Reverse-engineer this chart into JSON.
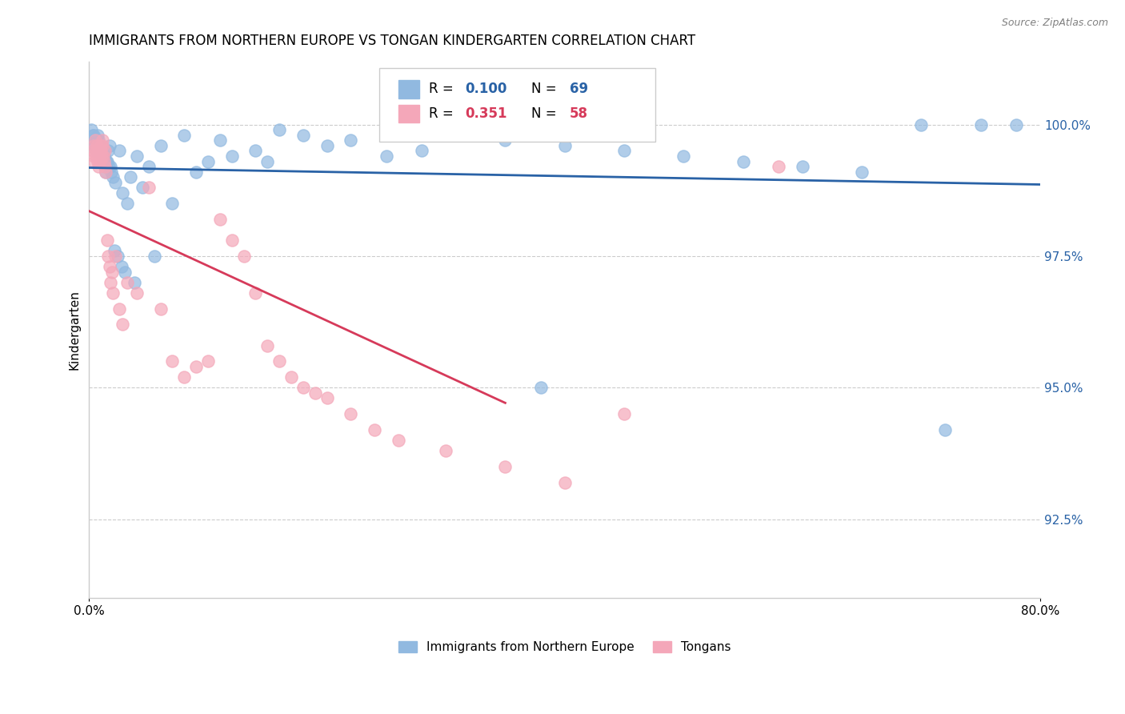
{
  "title": "IMMIGRANTS FROM NORTHERN EUROPE VS TONGAN KINDERGARTEN CORRELATION CHART",
  "source": "Source: ZipAtlas.com",
  "ylabel": "Kindergarten",
  "ylabel_ticks": [
    92.5,
    95.0,
    97.5,
    100.0
  ],
  "xlim": [
    0.0,
    80.0
  ],
  "ylim": [
    91.0,
    101.2
  ],
  "blue_R": 0.1,
  "blue_N": 69,
  "pink_R": 0.351,
  "pink_N": 58,
  "blue_color": "#91b9e0",
  "pink_color": "#f4a7b9",
  "blue_line_color": "#2962a6",
  "pink_line_color": "#d63a5a",
  "legend_label_blue": "Immigrants from Northern Europe",
  "legend_label_pink": "Tongans",
  "blue_x": [
    0.3,
    0.4,
    0.5,
    0.6,
    0.7,
    0.8,
    0.9,
    1.0,
    1.1,
    1.2,
    1.3,
    1.4,
    1.5,
    1.6,
    1.7,
    1.8,
    2.0,
    2.2,
    2.5,
    2.8,
    3.2,
    3.5,
    4.0,
    4.5,
    5.0,
    6.0,
    7.0,
    8.0,
    9.0,
    10.0,
    11.0,
    12.0,
    14.0,
    16.0,
    18.0,
    20.0,
    22.0,
    25.0,
    28.0,
    30.0,
    32.0,
    35.0,
    40.0,
    45.0,
    50.0,
    55.0,
    60.0,
    65.0,
    70.0,
    75.0,
    78.0,
    0.2,
    0.35,
    0.55,
    0.75,
    1.05,
    1.25,
    1.45,
    1.65,
    1.85,
    2.1,
    2.4,
    2.7,
    3.0,
    3.8,
    5.5,
    15.0,
    38.0,
    72.0
  ],
  "blue_y": [
    99.8,
    99.6,
    99.7,
    99.5,
    99.8,
    99.7,
    99.6,
    99.5,
    99.4,
    99.3,
    99.2,
    99.1,
    99.3,
    99.5,
    99.6,
    99.2,
    99.0,
    98.9,
    99.5,
    98.7,
    98.5,
    99.0,
    99.4,
    98.8,
    99.2,
    99.6,
    98.5,
    99.8,
    99.1,
    99.3,
    99.7,
    99.4,
    99.5,
    99.9,
    99.8,
    99.6,
    99.7,
    99.4,
    99.5,
    99.9,
    99.8,
    99.7,
    99.6,
    99.5,
    99.4,
    99.3,
    99.2,
    99.1,
    100.0,
    100.0,
    100.0,
    99.9,
    99.8,
    99.7,
    99.6,
    99.5,
    99.4,
    99.3,
    99.2,
    99.1,
    97.6,
    97.5,
    97.3,
    97.2,
    97.0,
    97.5,
    99.3,
    95.0,
    94.2
  ],
  "pink_x": [
    0.3,
    0.35,
    0.4,
    0.45,
    0.5,
    0.55,
    0.6,
    0.65,
    0.7,
    0.75,
    0.8,
    0.85,
    0.9,
    0.95,
    1.0,
    1.05,
    1.1,
    1.15,
    1.2,
    1.25,
    1.3,
    1.35,
    1.4,
    1.5,
    1.6,
    1.7,
    1.8,
    1.9,
    2.0,
    2.2,
    2.5,
    2.8,
    3.2,
    4.0,
    5.0,
    6.0,
    7.0,
    8.0,
    9.0,
    10.0,
    11.0,
    12.0,
    13.0,
    14.0,
    15.0,
    16.0,
    17.0,
    18.0,
    19.0,
    20.0,
    22.0,
    24.0,
    26.0,
    30.0,
    35.0,
    40.0,
    45.0,
    58.0
  ],
  "pink_y": [
    99.5,
    99.4,
    99.6,
    99.3,
    99.7,
    99.5,
    99.4,
    99.6,
    99.3,
    99.2,
    99.5,
    99.4,
    99.3,
    99.6,
    99.5,
    99.4,
    99.7,
    99.6,
    99.4,
    99.3,
    99.5,
    99.2,
    99.1,
    97.8,
    97.5,
    97.3,
    97.0,
    97.2,
    96.8,
    97.5,
    96.5,
    96.2,
    97.0,
    96.8,
    98.8,
    96.5,
    95.5,
    95.2,
    95.4,
    95.5,
    98.2,
    97.8,
    97.5,
    96.8,
    95.8,
    95.5,
    95.2,
    95.0,
    94.9,
    94.8,
    94.5,
    94.2,
    94.0,
    93.8,
    93.5,
    93.2,
    94.5,
    99.2
  ]
}
